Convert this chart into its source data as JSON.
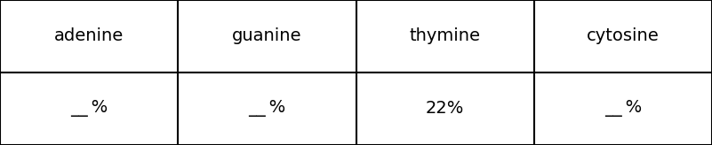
{
  "columns": [
    "adenine",
    "guanine",
    "thymine",
    "cytosine"
  ],
  "values": [
    "——%",
    "——%",
    "22%",
    "——%"
  ],
  "blank_label": "__ %",
  "background_color": "#ffffff",
  "border_color": "#000000",
  "text_color": "#000000",
  "header_fontsize": 14,
  "value_fontsize": 14,
  "figsize": [
    8.01,
    1.64
  ],
  "dpi": 100,
  "border_lw": 1.5
}
